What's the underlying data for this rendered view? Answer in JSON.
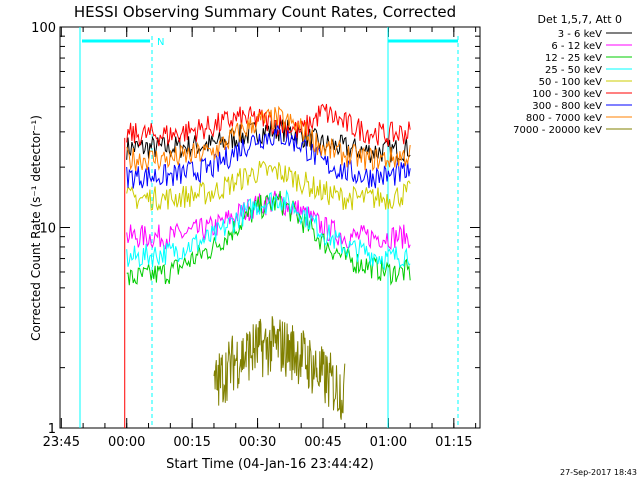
{
  "chart_data": {
    "type": "line",
    "title": "HESSI Observing Summary Count Rates, Corrected",
    "ylabel": "Corrected Count Rate (s⁻¹ detector⁻¹)",
    "xlabel": "Start Time (04-Jan-16 23:44:42)",
    "footer": "27-Sep-2017 18:43",
    "y_scale": "log",
    "ylim": [
      1,
      100
    ],
    "xlim": [
      "23:44:42",
      "01:21:00"
    ],
    "y_ticks": [
      "1",
      "10",
      "100"
    ],
    "x_ticks": [
      "23:45",
      "00:00",
      "00:15",
      "00:30",
      "00:45",
      "01:00",
      "01:15"
    ],
    "legend_header": "Det 1,5,7, Att 0",
    "legend_position": "top-right",
    "night_marker": "N",
    "series": [
      {
        "name": "3 - 6 keV",
        "color": "#000000",
        "x": [
          "00:00",
          "00:10",
          "00:20",
          "00:25",
          "00:30",
          "00:35",
          "00:40",
          "00:45",
          "00:50",
          "00:55",
          "01:00",
          "01:05"
        ],
        "y": [
          25,
          25,
          26,
          28,
          30,
          31,
          29,
          26,
          25,
          24,
          24,
          25
        ]
      },
      {
        "name": "6 - 12 keV",
        "color": "#ff00ff",
        "x": [
          "00:00",
          "00:10",
          "00:20",
          "00:25",
          "00:30",
          "00:35",
          "00:40",
          "00:45",
          "00:50",
          "00:55",
          "01:00",
          "01:05"
        ],
        "y": [
          9,
          9,
          10,
          11.5,
          13,
          13.5,
          12,
          10,
          9,
          9,
          9,
          9
        ]
      },
      {
        "name": "12 - 25 keV",
        "color": "#00cc00",
        "x": [
          "00:00",
          "00:10",
          "00:20",
          "00:25",
          "00:30",
          "00:35",
          "00:40",
          "00:45",
          "00:50",
          "00:55",
          "01:00",
          "01:05"
        ],
        "y": [
          5.5,
          6,
          8,
          10,
          12.5,
          13.5,
          11,
          8.5,
          7,
          6.5,
          6,
          6
        ]
      },
      {
        "name": "25 - 50 keV",
        "color": "#00ffff",
        "x": [
          "00:00",
          "00:10",
          "00:20",
          "00:25",
          "00:30",
          "00:35",
          "00:40",
          "00:45",
          "00:50",
          "00:55",
          "01:00",
          "01:05"
        ],
        "y": [
          7,
          7.5,
          9,
          11,
          13,
          14,
          12,
          9.5,
          8,
          7.5,
          7,
          7.5
        ]
      },
      {
        "name": "50 - 100 keV",
        "color": "#cccc00",
        "x": [
          "00:00",
          "00:10",
          "00:20",
          "00:25",
          "00:30",
          "00:35",
          "00:40",
          "00:45",
          "00:50",
          "00:55",
          "01:00",
          "01:05"
        ],
        "y": [
          14,
          14,
          15,
          17,
          19,
          19,
          17,
          15,
          14,
          14,
          14,
          15
        ]
      },
      {
        "name": "100 - 300 keV",
        "color": "#ff0000",
        "x": [
          "00:00",
          "00:10",
          "00:20",
          "00:25",
          "00:30",
          "00:35",
          "00:40",
          "00:45",
          "00:50",
          "00:55",
          "01:00",
          "01:05"
        ],
        "y": [
          29,
          29,
          32,
          35,
          35,
          33,
          30,
          38,
          33,
          30,
          29,
          30
        ]
      },
      {
        "name": "300 - 800 keV",
        "color": "#0000ff",
        "x": [
          "00:00",
          "00:10",
          "00:20",
          "00:25",
          "00:30",
          "00:35",
          "00:40",
          "00:45",
          "00:50",
          "00:55",
          "01:00",
          "01:05"
        ],
        "y": [
          18,
          18,
          20,
          24,
          28,
          29,
          26,
          21,
          19,
          18,
          18,
          19
        ]
      },
      {
        "name": "800 - 7000 keV",
        "color": "#ff8000",
        "x": [
          "00:00",
          "00:10",
          "00:20",
          "00:25",
          "00:30",
          "00:35",
          "00:40",
          "00:45",
          "00:50",
          "00:55",
          "01:00",
          "01:05"
        ],
        "y": [
          22,
          22,
          24,
          29,
          34,
          35,
          31,
          25,
          23,
          22,
          22,
          23
        ]
      },
      {
        "name": "7000 - 20000 keV",
        "color": "#808000",
        "x": [
          "00:20",
          "00:25",
          "00:30",
          "00:35",
          "00:40",
          "00:45",
          "00:50"
        ],
        "y": [
          1.6,
          2.2,
          2.5,
          2.6,
          2.3,
          1.8,
          1.5
        ]
      }
    ]
  }
}
